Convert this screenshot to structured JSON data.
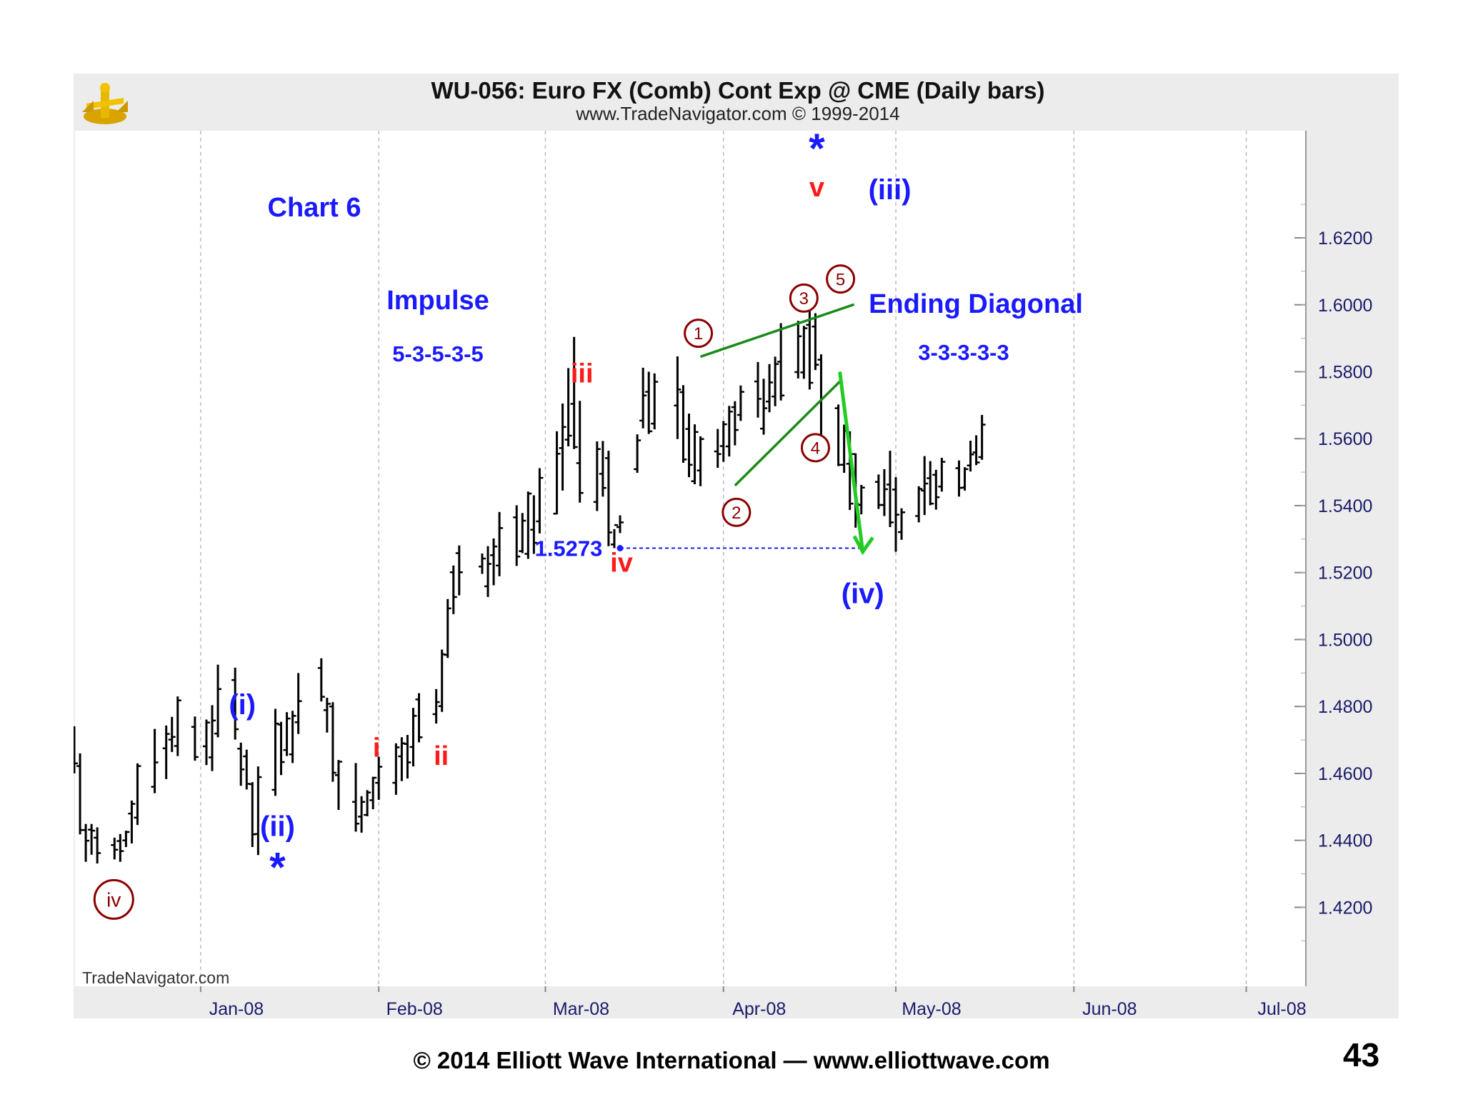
{
  "chart_data": {
    "type": "ohlc",
    "title": "WU-056:  Euro FX (Comb) Cont Exp @ CME  (Daily bars)",
    "subtitle": "www.TradeNavigator.com © 1999-2014",
    "watermark": "TradeNavigator.com",
    "ylim": [
      1.4075,
      1.6375
    ],
    "y_ticks": [
      1.62,
      1.6,
      1.58,
      1.56,
      1.54,
      1.52,
      1.5,
      1.48,
      1.46,
      1.44,
      1.42
    ],
    "y_tick_labels": [
      "1.6200",
      "1.6000",
      "1.5800",
      "1.5600",
      "1.5400",
      "1.5200",
      "1.5000",
      "1.4800",
      "1.4600",
      "1.4400",
      "1.4200"
    ],
    "x_months": [
      "Jan-08",
      "Feb-08",
      "Mar-08",
      "Apr-08",
      "May-08",
      "Jun-08",
      "Jul-08"
    ],
    "x_range": [
      "2007-12-10",
      "2008-07-11"
    ],
    "x_month_starts": [
      "2008-01-01",
      "2008-02-01",
      "2008-03-01",
      "2008-04-01",
      "2008-05-01",
      "2008-06-01",
      "2008-07-01"
    ],
    "grid": true,
    "bars": {
      "dates": [
        "2007-12-10",
        "2007-12-11",
        "2007-12-12",
        "2007-12-13",
        "2007-12-14",
        "2007-12-17",
        "2007-12-18",
        "2007-12-19",
        "2007-12-20",
        "2007-12-21",
        "2007-12-24",
        "2007-12-26",
        "2007-12-27",
        "2007-12-28",
        "2007-12-31",
        "2008-01-02",
        "2008-01-03",
        "2008-01-04",
        "2008-01-07",
        "2008-01-08",
        "2008-01-09",
        "2008-01-10",
        "2008-01-11",
        "2008-01-14",
        "2008-01-15",
        "2008-01-16",
        "2008-01-17",
        "2008-01-18",
        "2008-01-22",
        "2008-01-23",
        "2008-01-24",
        "2008-01-25",
        "2008-01-28",
        "2008-01-29",
        "2008-01-30",
        "2008-01-31",
        "2008-02-01",
        "2008-02-04",
        "2008-02-05",
        "2008-02-06",
        "2008-02-07",
        "2008-02-08",
        "2008-02-11",
        "2008-02-12",
        "2008-02-13",
        "2008-02-14",
        "2008-02-15",
        "2008-02-19",
        "2008-02-20",
        "2008-02-21",
        "2008-02-22",
        "2008-02-25",
        "2008-02-26",
        "2008-02-27",
        "2008-02-28",
        "2008-02-29",
        "2008-03-03",
        "2008-03-04",
        "2008-03-05",
        "2008-03-06",
        "2008-03-07",
        "2008-03-10",
        "2008-03-11",
        "2008-03-12",
        "2008-03-13",
        "2008-03-14",
        "2008-03-17",
        "2008-03-18",
        "2008-03-19",
        "2008-03-20",
        "2008-03-24",
        "2008-03-25",
        "2008-03-26",
        "2008-03-27",
        "2008-03-28",
        "2008-03-31",
        "2008-04-01",
        "2008-04-02",
        "2008-04-03",
        "2008-04-04",
        "2008-04-07",
        "2008-04-08",
        "2008-04-09",
        "2008-04-10",
        "2008-04-11",
        "2008-04-14",
        "2008-04-15",
        "2008-04-16",
        "2008-04-17",
        "2008-04-18",
        "2008-04-21",
        "2008-04-22",
        "2008-04-23",
        "2008-04-24",
        "2008-04-25",
        "2008-04-28",
        "2008-04-29",
        "2008-04-30",
        "2008-05-01",
        "2008-05-02",
        "2008-05-05",
        "2008-05-06",
        "2008-05-07",
        "2008-05-08",
        "2008-05-09",
        "2008-05-12",
        "2008-05-13",
        "2008-05-14",
        "2008-05-15",
        "2008-05-16"
      ],
      "high": [
        1.4741,
        1.466,
        1.4449,
        1.4449,
        1.4439,
        1.4408,
        1.4419,
        1.4429,
        1.4519,
        1.463,
        1.4733,
        1.4743,
        1.4769,
        1.483,
        1.477,
        1.4761,
        1.4804,
        1.4925,
        1.4916,
        1.4692,
        1.4671,
        1.4574,
        1.4621,
        1.4793,
        1.4754,
        1.4783,
        1.4787,
        1.49,
        1.4944,
        1.4826,
        1.4813,
        1.464,
        1.4631,
        1.4532,
        1.455,
        1.459,
        1.465,
        1.469,
        1.4708,
        1.4715,
        1.4796,
        1.484,
        1.4852,
        1.497,
        1.5121,
        1.5221,
        1.5281,
        1.5257,
        1.5279,
        1.5302,
        1.5381,
        1.5401,
        1.5378,
        1.5442,
        1.5431,
        1.5512,
        1.5622,
        1.5705,
        1.5811,
        1.5904,
        1.5713,
        1.5592,
        1.5593,
        1.5564,
        1.533,
        1.5371,
        1.5613,
        1.5812,
        1.58,
        1.5795,
        1.5846,
        1.576,
        1.5675,
        1.5643,
        1.5607,
        1.5629,
        1.5653,
        1.5698,
        1.5712,
        1.5759,
        1.5829,
        1.5779,
        1.5823,
        1.5845,
        1.5945,
        1.5952,
        1.5937,
        1.5989,
        1.5975,
        1.5852,
        1.5702,
        1.5642,
        1.5622,
        1.5556,
        1.5462,
        1.5493,
        1.5509,
        1.5564,
        1.5485,
        1.5392,
        1.5458,
        1.5548,
        1.5533,
        1.5507,
        1.5543,
        1.5535,
        1.5515,
        1.5594,
        1.561,
        1.5671
      ],
      "low": [
        1.46,
        1.4418,
        1.4336,
        1.4357,
        1.4331,
        1.4343,
        1.4336,
        1.438,
        1.4391,
        1.4446,
        1.4541,
        1.4583,
        1.4664,
        1.4652,
        1.4638,
        1.4625,
        1.4607,
        1.4708,
        1.4701,
        1.4563,
        1.4552,
        1.438,
        1.4356,
        1.4533,
        1.4595,
        1.4652,
        1.4631,
        1.4718,
        1.4815,
        1.4722,
        1.4575,
        1.4491,
        1.4426,
        1.4423,
        1.4472,
        1.4493,
        1.4521,
        1.4536,
        1.4577,
        1.4585,
        1.4621,
        1.4693,
        1.4749,
        1.4784,
        1.4945,
        1.5076,
        1.5132,
        1.5196,
        1.5127,
        1.5162,
        1.5189,
        1.522,
        1.5258,
        1.5241,
        1.5256,
        1.5317,
        1.5374,
        1.5445,
        1.5577,
        1.5569,
        1.5409,
        1.5384,
        1.5427,
        1.5279,
        1.5273,
        1.5318,
        1.5498,
        1.5631,
        1.5614,
        1.5628,
        1.5599,
        1.5528,
        1.5485,
        1.5464,
        1.5458,
        1.5513,
        1.5531,
        1.5547,
        1.558,
        1.5653,
        1.5663,
        1.5612,
        1.5679,
        1.5697,
        1.5714,
        1.578,
        1.5779,
        1.5747,
        1.5805,
        1.5588,
        1.5518,
        1.5498,
        1.5387,
        1.5334,
        1.5374,
        1.539,
        1.5369,
        1.5336,
        1.5262,
        1.5298,
        1.535,
        1.5372,
        1.5401,
        1.5388,
        1.5442,
        1.5427,
        1.5445,
        1.5502,
        1.5521,
        1.5537
      ],
      "open": [
        1.472,
        1.4622,
        1.4431,
        1.4432,
        1.4408,
        1.4386,
        1.4398,
        1.44,
        1.448,
        1.4468,
        1.456,
        1.4675,
        1.4701,
        1.4682,
        1.4739,
        1.4681,
        1.4648,
        1.4719,
        1.4879,
        1.4674,
        1.4651,
        1.4568,
        1.4419,
        1.4551,
        1.4746,
        1.467,
        1.4657,
        1.4753,
        1.4915,
        1.4789,
        1.48,
        1.4595,
        1.4515,
        1.4471,
        1.4476,
        1.452,
        1.4572,
        1.4572,
        1.4651,
        1.4688,
        1.4679,
        1.4821,
        1.4777,
        1.4801,
        1.4954,
        1.5201,
        1.5258,
        1.5218,
        1.5159,
        1.5252,
        1.5221,
        1.5365,
        1.5264,
        1.5256,
        1.5328,
        1.5353,
        1.5376,
        1.5572,
        1.5597,
        1.5704,
        1.5527,
        1.5411,
        1.5495,
        1.5542,
        1.5284,
        1.5336,
        1.5509,
        1.5654,
        1.574,
        1.5645,
        1.5699,
        1.5739,
        1.5629,
        1.5473,
        1.5505,
        1.5562,
        1.5578,
        1.5577,
        1.5694,
        1.5671,
        1.5771,
        1.563,
        1.5711,
        1.5726,
        1.583,
        1.5799,
        1.5798,
        1.594,
        1.5935,
        1.5836,
        1.5691,
        1.5522,
        1.5525,
        1.5554,
        1.5402,
        1.5471,
        1.5402,
        1.5463,
        1.5448,
        1.5321,
        1.5369,
        1.5445,
        1.5482,
        1.5492,
        1.5457,
        1.5512,
        1.5454,
        1.552,
        1.5559,
        1.5545
      ],
      "close": [
        1.463,
        1.4431,
        1.4399,
        1.4429,
        1.4362,
        1.4372,
        1.4368,
        1.4425,
        1.4509,
        1.4622,
        1.4633,
        1.4718,
        1.4709,
        1.4818,
        1.4649,
        1.4752,
        1.4758,
        1.4852,
        1.4732,
        1.4612,
        1.4569,
        1.4418,
        1.4589,
        1.4749,
        1.4634,
        1.4764,
        1.4772,
        1.4816,
        1.4829,
        1.4808,
        1.4602,
        1.4635,
        1.445,
        1.4515,
        1.4543,
        1.4587,
        1.462,
        1.4678,
        1.469,
        1.4633,
        1.4772,
        1.4708,
        1.4813,
        1.4956,
        1.5093,
        1.5127,
        1.5201,
        1.5242,
        1.5226,
        1.5278,
        1.5333,
        1.5248,
        1.5355,
        1.5436,
        1.5289,
        1.5483,
        1.5555,
        1.5635,
        1.5609,
        1.5575,
        1.5438,
        1.5569,
        1.5453,
        1.532,
        1.5342,
        1.535,
        1.5595,
        1.5729,
        1.5622,
        1.577,
        1.5747,
        1.5538,
        1.5522,
        1.562,
        1.5599,
        1.5554,
        1.5643,
        1.5681,
        1.5626,
        1.574,
        1.5719,
        1.5691,
        1.5768,
        1.5823,
        1.5729,
        1.5906,
        1.593,
        1.5767,
        1.5821,
        1.56,
        1.5522,
        1.5624,
        1.5406,
        1.5405,
        1.5454,
        1.5402,
        1.5449,
        1.535,
        1.5373,
        1.538,
        1.545,
        1.5466,
        1.5406,
        1.5425,
        1.5531,
        1.5453,
        1.5509,
        1.5553,
        1.5529,
        1.5642
      ]
    },
    "wave_labels": [
      {
        "text": "Chart 6",
        "role": "chart-note"
      },
      {
        "text": "Impulse",
        "role": "chart-note"
      },
      {
        "text": "5-3-5-3-5",
        "role": "chart-note"
      },
      {
        "text": "Ending Diagonal",
        "role": "chart-note"
      },
      {
        "text": "3-3-3-3-3",
        "role": "chart-note"
      },
      {
        "text": "(i)",
        "color": "#1a1aff"
      },
      {
        "text": "(ii)",
        "color": "#1a1aff"
      },
      {
        "text": "(iii)",
        "color": "#1a1aff"
      },
      {
        "text": "(iv)",
        "color": "#1a1aff"
      },
      {
        "text": "i",
        "color": "#ff1a1a"
      },
      {
        "text": "ii",
        "color": "#ff1a1a"
      },
      {
        "text": "iii",
        "color": "#ff1a1a"
      },
      {
        "text": "iv",
        "color": "#ff1a1a"
      },
      {
        "text": "v",
        "color": "#ff1a1a"
      },
      {
        "text": "1.5273",
        "color": "#1a1aff"
      }
    ],
    "circled_labels": [
      "iv",
      "1",
      "2",
      "3",
      "4",
      "5"
    ],
    "level_line": {
      "value": 1.5273,
      "label": "1.5273"
    },
    "colors": {
      "bars": "#000000",
      "grid": "#bbbbbb",
      "blue_label": "#1a1aff",
      "red_label": "#ff1a1a",
      "circled": "#8b0000",
      "trendline": "#1a8a1a",
      "arrow": "#22cc22",
      "panel": "#ececec"
    }
  },
  "footer": {
    "copyright": "© 2014 Elliott Wave International — www.elliottwave.com",
    "page_number": "43"
  },
  "icons": {
    "logo": "trade-navigator-logo-icon",
    "star": "asterisk-icon"
  }
}
